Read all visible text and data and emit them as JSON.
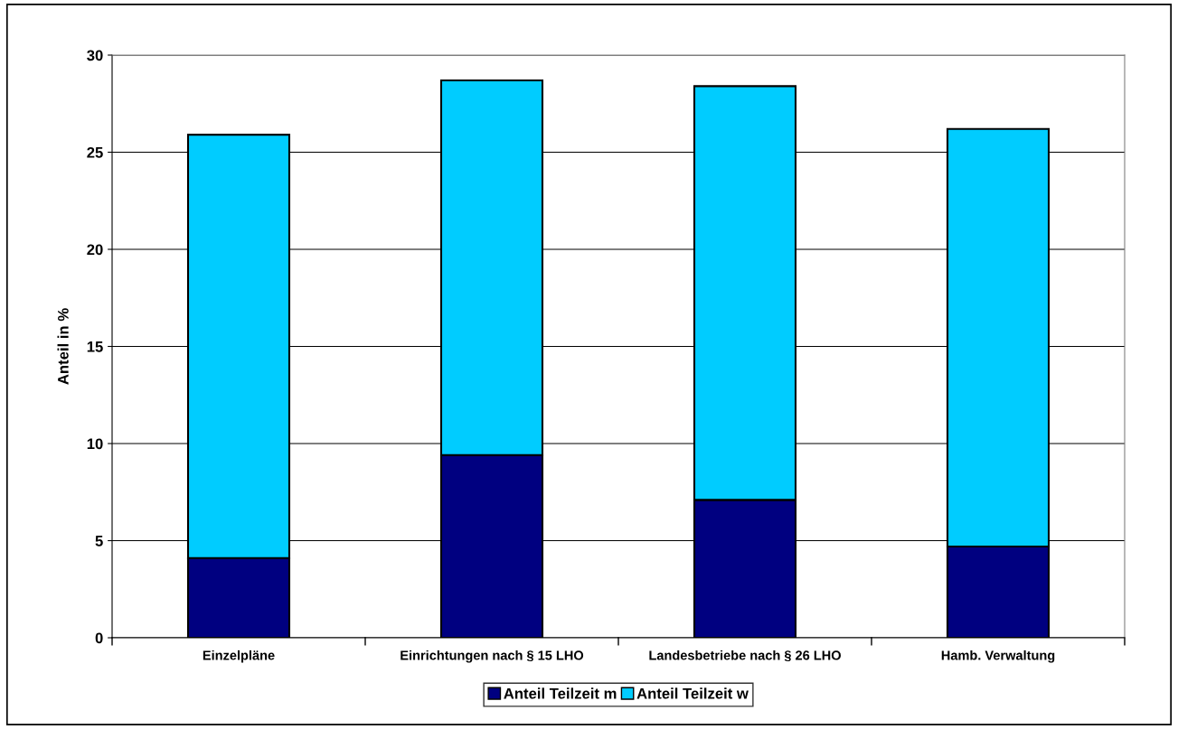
{
  "chart_data": {
    "type": "bar",
    "stacked": true,
    "ylabel": "Anteil in %",
    "categories": [
      "Einzelpläne",
      "Einrichtungen nach § 15 LHO",
      "Landesbetriebe nach § 26 LHO",
      "Hamb. Verwaltung"
    ],
    "series": [
      {
        "name": "Anteil Teilzeit m",
        "color": "#000080",
        "values": [
          4.1,
          9.4,
          7.1,
          4.7
        ]
      },
      {
        "name": "Anteil Teilzeit w",
        "color": "#00ccff",
        "values": [
          21.8,
          19.3,
          21.3,
          21.5
        ]
      }
    ],
    "ylim": [
      0,
      30
    ],
    "yticks": [
      0,
      5,
      10,
      15,
      20,
      25,
      30
    ],
    "grid": "y",
    "legend": "bottom"
  }
}
